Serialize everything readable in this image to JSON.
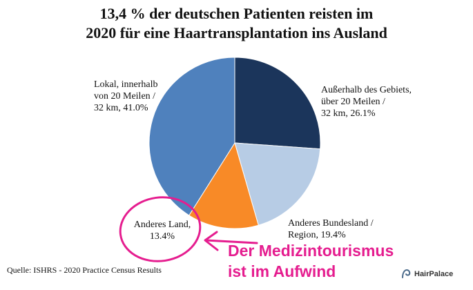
{
  "chart_data": {
    "type": "pie",
    "title_lines": [
      "13,4 % der deutschen Patienten reisten im",
      "2020 für eine Haartransplantation ins Ausland"
    ],
    "slices": [
      {
        "label": "Außerhalb des Gebiets,\nüber 20 Meilen /\n32 km, 26.1%",
        "value": 26.1,
        "color": "#1b355b"
      },
      {
        "label": "Anderes Bundesland /\nRegion, 19.4%",
        "value": 19.4,
        "color": "#b7cce5"
      },
      {
        "label": "Anderes Land,\n13.4%",
        "value": 13.4,
        "color": "#f88a27"
      },
      {
        "label": "Lokal, innerhalb\nvon 20 Meilen /\n32 km, 41.0%",
        "value": 41.0,
        "color": "#4f81bd"
      }
    ],
    "source": "Quelle: ISHRS - 2020 Practice Census Results"
  },
  "annotation": {
    "lines": [
      "Der Medizintourismus",
      "ist im Aufwind"
    ],
    "color": "#e51d8f"
  },
  "logo": {
    "text": "HairPalace"
  }
}
